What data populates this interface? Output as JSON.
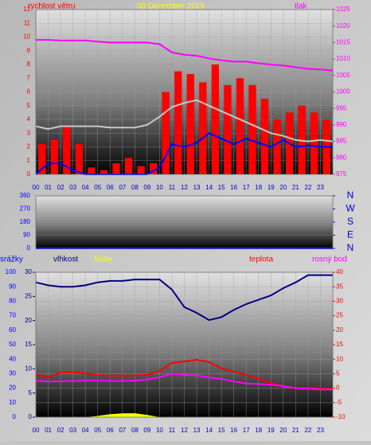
{
  "chart_data": [
    {
      "type": "combo",
      "title": "08 December 2019",
      "grid": true,
      "xlim": [
        0,
        24
      ],
      "x": [
        0,
        1,
        2,
        3,
        4,
        5,
        6,
        7,
        8,
        9,
        10,
        11,
        12,
        13,
        14,
        15,
        16,
        17,
        18,
        19,
        20,
        21,
        22,
        23,
        24
      ],
      "xticks": [
        {
          "value": 0,
          "label": "00"
        },
        {
          "value": 1,
          "label": "01"
        },
        {
          "value": 2,
          "label": "02"
        },
        {
          "value": 3,
          "label": "03"
        },
        {
          "value": 4,
          "label": "04"
        },
        {
          "value": 5,
          "label": "05"
        },
        {
          "value": 6,
          "label": "06"
        },
        {
          "value": 7,
          "label": "07"
        },
        {
          "value": 8,
          "label": "08"
        },
        {
          "value": 9,
          "label": "09"
        },
        10,
        11,
        12,
        13,
        14,
        15,
        16,
        17,
        18,
        19,
        20,
        21,
        22,
        23
      ],
      "ylim": [
        0,
        12
      ],
      "yticks": [
        0,
        1,
        2,
        3,
        4,
        5,
        6,
        7,
        8,
        9,
        10,
        11,
        12
      ],
      "ytick_color": "#ff0000",
      "y2lim": [
        975,
        1025
      ],
      "y2ticks": [
        975,
        980,
        985,
        990,
        995,
        1000,
        1005,
        1010,
        1015,
        1020,
        1025
      ],
      "y2tick_color": "#ff00ff",
      "series": [
        {
          "name": "rychlost větru",
          "type": "bar",
          "color": "#ff0000",
          "x": [
            0,
            1,
            2,
            3,
            4,
            5,
            6,
            7,
            8,
            9,
            10,
            11,
            12,
            13,
            14,
            15,
            16,
            17,
            18,
            19,
            20,
            21,
            22,
            23
          ],
          "values": [
            2.2,
            2.5,
            3.5,
            2.2,
            0.5,
            0.3,
            0.8,
            1.2,
            0.6,
            0.8,
            6.0,
            7.5,
            7.3,
            6.7,
            8.0,
            6.5,
            7.0,
            6.5,
            5.5,
            4.0,
            4.5,
            5.0,
            4.5,
            4.0
          ]
        },
        {
          "type": "line",
          "color": "#c8c8c8",
          "values": [
            3.5,
            3.3,
            3.5,
            3.5,
            3.5,
            3.5,
            3.4,
            3.4,
            3.4,
            3.6,
            4.2,
            4.9,
            5.2,
            5.4,
            5.0,
            4.6,
            4.2,
            3.8,
            3.4,
            3.0,
            2.8,
            2.5,
            2.4,
            2.5,
            2.4
          ]
        },
        {
          "type": "line",
          "color": "#0000ff",
          "values": [
            0,
            0.8,
            0.8,
            0.3,
            0,
            0,
            0,
            0,
            0,
            0,
            0.5,
            2.2,
            2.0,
            2.3,
            3.0,
            2.6,
            2.2,
            2.6,
            2.3,
            2.0,
            2.5,
            2.0,
            2.1,
            2.0,
            2.0
          ]
        },
        {
          "name": "tlak",
          "type": "line",
          "color": "#ff00ff",
          "axis": "y2",
          "values": [
            1015.8,
            1015.8,
            1015.6,
            1015.6,
            1015.6,
            1015.3,
            1015,
            1015,
            1015,
            1015,
            1014.5,
            1012,
            1011.3,
            1011,
            1010.2,
            1009.6,
            1009.2,
            1009.2,
            1008.7,
            1008.3,
            1008,
            1007.5,
            1007,
            1006.8,
            1006.5
          ]
        }
      ]
    },
    {
      "type": "combo",
      "grid": true,
      "xlim": [
        0,
        24
      ],
      "x": [
        0,
        1,
        2,
        3,
        4,
        5,
        6,
        7,
        8,
        9,
        10,
        11,
        12,
        13,
        14,
        15,
        16,
        17,
        18,
        19,
        20,
        21,
        22,
        23,
        24
      ],
      "ylim": [
        0,
        360
      ],
      "yticks": [
        0,
        90,
        180,
        270,
        360
      ],
      "ytick_color": "#0000ff",
      "y2lim": [
        0,
        360
      ],
      "y2ticks": [
        {
          "value": 360,
          "label": "N"
        },
        {
          "value": 270,
          "label": "W"
        },
        {
          "value": 180,
          "label": "S"
        },
        {
          "value": 90,
          "label": "E"
        },
        {
          "value": 0,
          "label": "N"
        }
      ],
      "y2tick_color": "#0000cc",
      "series": [
        {
          "type": "line",
          "color": "#0000ff",
          "values": [
            0,
            0,
            0,
            0,
            0,
            0,
            0,
            0,
            0,
            0,
            0,
            0,
            0,
            0,
            0,
            0,
            0,
            0,
            0,
            0,
            0,
            0,
            0,
            0,
            0
          ]
        }
      ]
    },
    {
      "type": "combo",
      "grid": true,
      "xlim": [
        0,
        24
      ],
      "x": [
        0,
        1,
        2,
        3,
        4,
        5,
        6,
        7,
        8,
        9,
        10,
        11,
        12,
        13,
        14,
        15,
        16,
        17,
        18,
        19,
        20,
        21,
        22,
        23,
        24
      ],
      "xticks": [
        {
          "value": 0,
          "label": "00"
        },
        {
          "value": 1,
          "label": "01"
        },
        {
          "value": 2,
          "label": "02"
        },
        {
          "value": 3,
          "label": "03"
        },
        {
          "value": 4,
          "label": "04"
        },
        {
          "value": 5,
          "label": "05"
        },
        {
          "value": 6,
          "label": "06"
        },
        {
          "value": 7,
          "label": "07"
        },
        {
          "value": 8,
          "label": "08"
        },
        {
          "value": 9,
          "label": "09"
        },
        10,
        11,
        12,
        13,
        14,
        15,
        16,
        17,
        18,
        19,
        20,
        21,
        22,
        23
      ],
      "ylim": [
        0,
        100
      ],
      "yticks": [
        0,
        10,
        20,
        30,
        40,
        50,
        60,
        70,
        80,
        90,
        100
      ],
      "ytick_color": "#0000ff",
      "y3lim": [
        0,
        30
      ],
      "y3ticks": [
        0,
        5,
        10,
        15,
        20,
        25,
        30
      ],
      "y3tick_color": "#000080",
      "y2lim": [
        -10,
        40
      ],
      "y2ticks": [
        -10,
        -5,
        0,
        5,
        10,
        15,
        20,
        25,
        30,
        35,
        40
      ],
      "y2tick_color": "#ff0000",
      "series": [
        {
          "name": "srážky",
          "type": "bar",
          "color": "#0000ff",
          "axis": "y3",
          "x": [
            0,
            1,
            2,
            3,
            4,
            5,
            6,
            7,
            8,
            9,
            10,
            11,
            12,
            13,
            14,
            15,
            16,
            17,
            18,
            19,
            20,
            21,
            22,
            23
          ],
          "values": [
            0,
            0,
            0,
            0,
            0,
            0,
            0,
            0,
            0,
            0,
            0,
            0,
            0,
            0,
            0,
            0,
            0,
            0,
            0,
            0,
            0,
            0,
            0,
            0
          ]
        },
        {
          "name": "vlhkost",
          "type": "line",
          "color": "#000080",
          "values": [
            93,
            91,
            90,
            90,
            91,
            93,
            94,
            94,
            95,
            95,
            95,
            88,
            76,
            72,
            67,
            69,
            74,
            78,
            81,
            84,
            89,
            93,
            98,
            98,
            98
          ]
        },
        {
          "name": "Solar",
          "type": "area",
          "color": "#ffff00",
          "values": [
            0,
            0,
            0,
            0,
            0,
            0.8,
            2,
            2.6,
            2.7,
            1.5,
            0,
            0,
            0,
            0,
            0,
            0,
            0,
            0,
            0,
            0,
            0,
            0,
            0,
            0,
            0
          ]
        },
        {
          "name": "teplota",
          "type": "line",
          "color": "#ff0000",
          "axis": "y2",
          "values": [
            4.8,
            3.7,
            5.4,
            5.4,
            5.2,
            4.5,
            4.3,
            4.3,
            4.4,
            4.6,
            5.9,
            8.7,
            9.2,
            9.8,
            9.0,
            6.8,
            5.7,
            4.6,
            3.2,
            1.8,
            0.7,
            -0.1,
            0.2,
            0.0,
            -0.2
          ]
        },
        {
          "name": "rosný bod",
          "type": "line",
          "color": "#ff00ff",
          "axis": "y2",
          "values": [
            2.6,
            2.3,
            2.4,
            2.5,
            2.6,
            2.6,
            2.5,
            2.5,
            2.6,
            3.0,
            3.8,
            5.0,
            4.6,
            4.4,
            3.7,
            3.2,
            2.3,
            1.6,
            1.4,
            1.2,
            0.7,
            0.0,
            -0.2,
            -0.4,
            -0.5
          ]
        }
      ]
    }
  ]
}
